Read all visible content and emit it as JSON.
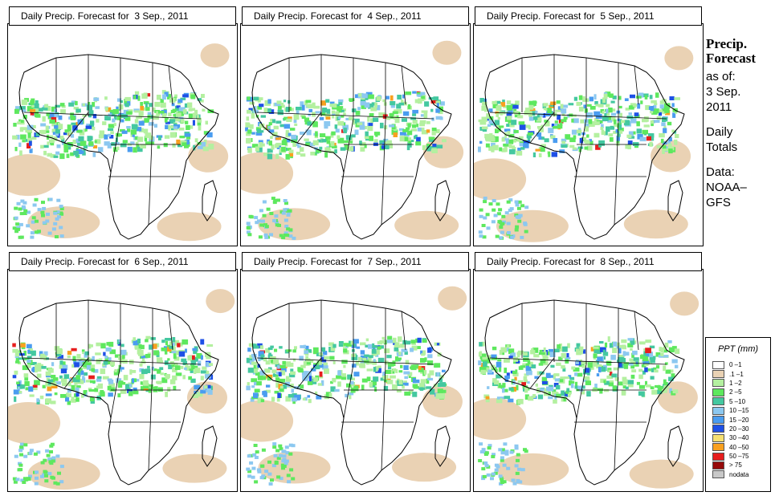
{
  "panels": [
    {
      "title": "Daily Precip. Forecast for  3 Sep., 2011",
      "date": "3 Sep., 2011"
    },
    {
      "title": "Daily Precip. Forecast for  4 Sep., 2011",
      "date": "4 Sep., 2011"
    },
    {
      "title": "Daily Precip. Forecast for  5 Sep., 2011",
      "date": "5 Sep., 2011"
    },
    {
      "title": "Daily Precip. Forecast for  6 Sep., 2011",
      "date": "6 Sep., 2011"
    },
    {
      "title": "Daily Precip. Forecast for  7 Sep., 2011",
      "date": "7 Sep., 2011"
    },
    {
      "title": "Daily Precip. Forecast for  8 Sep., 2011",
      "date": "8 Sep., 2011"
    }
  ],
  "side_info": {
    "title_line1": "Precip.",
    "title_line2": "Forecast",
    "as_of_label": "as of:",
    "as_of_date_line1": "3 Sep.",
    "as_of_date_line2": "2011",
    "totals_line1": "Daily",
    "totals_line2": "Totals",
    "data_line1": "Data:",
    "data_line2": "NOAA–",
    "data_line3": "GFS"
  },
  "legend": {
    "title": "PPT (mm)",
    "items": [
      {
        "label": "0 –1",
        "color": "#ffffff"
      },
      {
        "label": ".1 –1",
        "color": "#ead2b4"
      },
      {
        "label": "1 –2",
        "color": "#b4f0a0"
      },
      {
        "label": "2 –5",
        "color": "#5ee85e"
      },
      {
        "label": "5 –10",
        "color": "#44c8a0"
      },
      {
        "label": "10 –15",
        "color": "#8cc8f0"
      },
      {
        "label": "15 –20",
        "color": "#4a9cf0"
      },
      {
        "label": "20 –30",
        "color": "#1e50e6"
      },
      {
        "label": "30 –40",
        "color": "#f6e070"
      },
      {
        "label": "40 –50",
        "color": "#f8a020"
      },
      {
        "label": "50 –75",
        "color": "#e61e1e"
      },
      {
        "label": "> 75",
        "color": "#960a0a"
      },
      {
        "label": "nodata",
        "color": "#c8c8c8"
      }
    ]
  }
}
